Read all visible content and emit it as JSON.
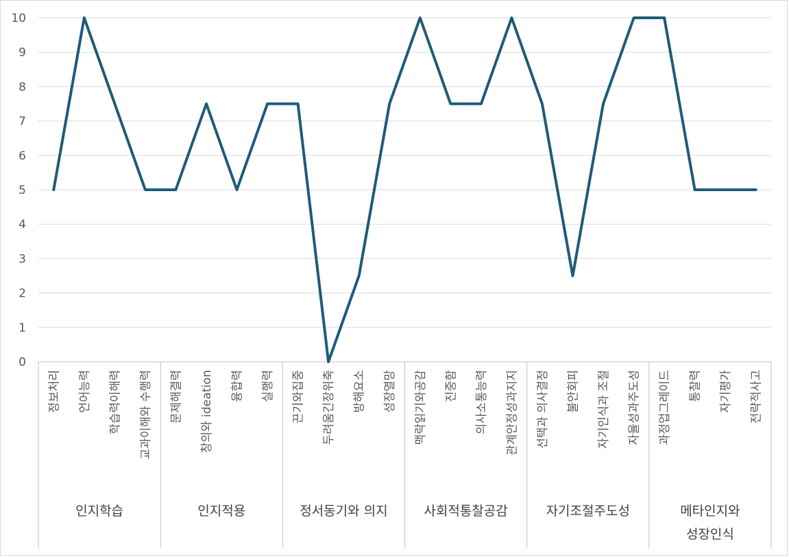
{
  "chart_data": {
    "type": "line",
    "title": "",
    "xlabel": "",
    "ylabel": "",
    "ylim": [
      0,
      10
    ],
    "yticks": [
      0,
      1,
      2,
      3,
      4,
      5,
      6,
      7,
      8,
      9,
      10
    ],
    "grid": true,
    "legend": "none",
    "line_color": "#1f5b78",
    "categories": [
      "정보처리",
      "언어능력",
      "학습력이해력",
      "교과이해와 수행력",
      "문제해결력",
      "창의와 ideation",
      "융합력",
      "실행력",
      "끈기와집중",
      "두려움긴장위축",
      "방해요소",
      "성장열망",
      "맥락읽기와공감",
      "진중함",
      "의사소통능력",
      "관계안정성과지지",
      "선택과 의사결정",
      "불안회피",
      "자기인식과 조절",
      "자율성과주도성",
      "과정업그레이드",
      "통찰력",
      "자기평가",
      "전략적사고"
    ],
    "values": [
      5,
      10,
      7.5,
      5,
      5,
      7.5,
      5,
      7.5,
      7.5,
      0,
      2.5,
      7.5,
      10,
      7.5,
      7.5,
      10,
      7.5,
      2.5,
      7.5,
      10,
      10,
      5,
      5,
      5
    ],
    "groups": [
      {
        "label": [
          "인지학습"
        ],
        "count": 4
      },
      {
        "label": [
          "인지적용"
        ],
        "count": 4
      },
      {
        "label": [
          "정서동기와 의지"
        ],
        "count": 4
      },
      {
        "label": [
          "사회적통찰공감"
        ],
        "count": 4
      },
      {
        "label": [
          "자기조절주도성"
        ],
        "count": 4
      },
      {
        "label": [
          "메타인지와",
          "성장인식"
        ],
        "count": 4
      }
    ]
  }
}
